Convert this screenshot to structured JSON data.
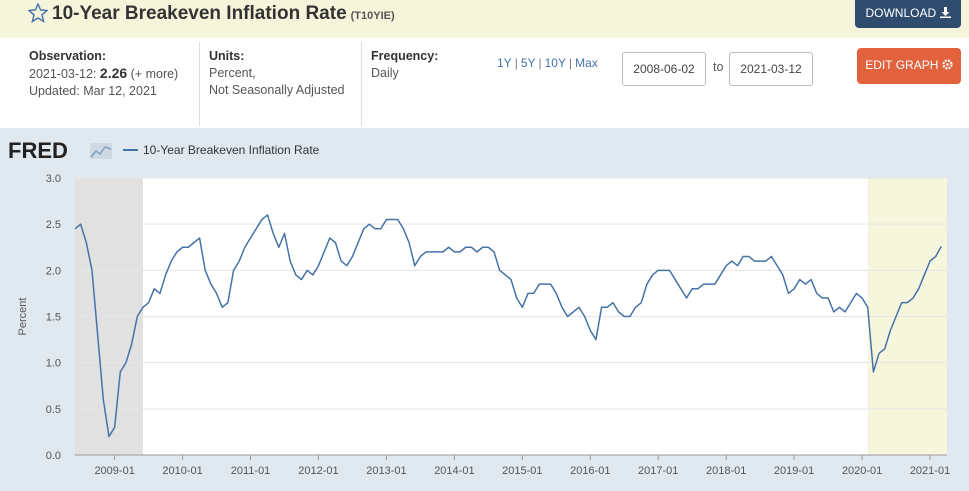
{
  "header": {
    "title": "10-Year Breakeven Inflation Rate",
    "series_id": "(T10YIE)",
    "download": "DOWNLOAD"
  },
  "info": {
    "observation_label": "Observation:",
    "observation_date": "2021-03-12:",
    "observation_value": "2.26",
    "more": "(+ more)",
    "updated": "Updated: Mar 12, 2021",
    "units_label": "Units:",
    "units": [
      "Percent,",
      "Not Seasonally Adjusted"
    ],
    "frequency_label": "Frequency:",
    "frequency": "Daily",
    "ranges": [
      "1Y",
      "5Y",
      "10Y",
      "Max"
    ],
    "start": "2008-06-02",
    "to": "to",
    "end": "2021-03-12",
    "edit": "EDIT GRAPH"
  },
  "chart_data": {
    "type": "line",
    "logo": "FRED",
    "ylabel": "Percent",
    "xlim": [
      "2008-06",
      "2021-04"
    ],
    "xticks": [
      "2009-01",
      "2010-01",
      "2011-01",
      "2012-01",
      "2013-01",
      "2014-01",
      "2015-01",
      "2016-01",
      "2017-01",
      "2018-01",
      "2019-01",
      "2020-01",
      "2021-01"
    ],
    "ylim": [
      0,
      3
    ],
    "yticks": [
      {
        "value": 0,
        "label": "0.0"
      },
      0.5,
      {
        "value": 1,
        "label": "1.0"
      },
      1.5,
      {
        "value": 2,
        "label": "2.0"
      },
      2.5,
      {
        "value": 3,
        "label": "3.0"
      }
    ],
    "grid": true,
    "shaded_periods": [
      {
        "start": "2008-06",
        "end": "2009-06",
        "color": "#e1e1e1"
      },
      {
        "start": "2020-02",
        "end": "2021-04",
        "color": "#f6f6dc"
      }
    ],
    "x": [
      "2008-06",
      "2008-07",
      "2008-08",
      "2008-09",
      "2008-10",
      "2008-11",
      "2008-12",
      "2009-01",
      "2009-02",
      "2009-03",
      "2009-04",
      "2009-05",
      "2009-06",
      "2009-07",
      "2009-08",
      "2009-09",
      "2009-10",
      "2009-11",
      "2009-12",
      "2010-01",
      "2010-02",
      "2010-03",
      "2010-04",
      "2010-05",
      "2010-06",
      "2010-07",
      "2010-08",
      "2010-09",
      "2010-10",
      "2010-11",
      "2010-12",
      "2011-01",
      "2011-02",
      "2011-03",
      "2011-04",
      "2011-05",
      "2011-06",
      "2011-07",
      "2011-08",
      "2011-09",
      "2011-10",
      "2011-11",
      "2011-12",
      "2012-01",
      "2012-02",
      "2012-03",
      "2012-04",
      "2012-05",
      "2012-06",
      "2012-07",
      "2012-08",
      "2012-09",
      "2012-10",
      "2012-11",
      "2012-12",
      "2013-01",
      "2013-02",
      "2013-03",
      "2013-04",
      "2013-05",
      "2013-06",
      "2013-07",
      "2013-08",
      "2013-09",
      "2013-10",
      "2013-11",
      "2013-12",
      "2014-01",
      "2014-02",
      "2014-03",
      "2014-04",
      "2014-05",
      "2014-06",
      "2014-07",
      "2014-08",
      "2014-09",
      "2014-10",
      "2014-11",
      "2014-12",
      "2015-01",
      "2015-02",
      "2015-03",
      "2015-04",
      "2015-05",
      "2015-06",
      "2015-07",
      "2015-08",
      "2015-09",
      "2015-10",
      "2015-11",
      "2015-12",
      "2016-01",
      "2016-02",
      "2016-03",
      "2016-04",
      "2016-05",
      "2016-06",
      "2016-07",
      "2016-08",
      "2016-09",
      "2016-10",
      "2016-11",
      "2016-12",
      "2017-01",
      "2017-02",
      "2017-03",
      "2017-04",
      "2017-05",
      "2017-06",
      "2017-07",
      "2017-08",
      "2017-09",
      "2017-10",
      "2017-11",
      "2017-12",
      "2018-01",
      "2018-02",
      "2018-03",
      "2018-04",
      "2018-05",
      "2018-06",
      "2018-07",
      "2018-08",
      "2018-09",
      "2018-10",
      "2018-11",
      "2018-12",
      "2019-01",
      "2019-02",
      "2019-03",
      "2019-04",
      "2019-05",
      "2019-06",
      "2019-07",
      "2019-08",
      "2019-09",
      "2019-10",
      "2019-11",
      "2019-12",
      "2020-01",
      "2020-02",
      "2020-03",
      "2020-04",
      "2020-05",
      "2020-06",
      "2020-07",
      "2020-08",
      "2020-09",
      "2020-10",
      "2020-11",
      "2020-12",
      "2021-01",
      "2021-02",
      "2021-03"
    ],
    "series": [
      {
        "name": "10-Year Breakeven Inflation Rate",
        "color": "#4572a7",
        "values": [
          2.45,
          2.5,
          2.3,
          2.0,
          1.3,
          0.6,
          0.2,
          0.3,
          0.9,
          1.0,
          1.2,
          1.5,
          1.6,
          1.65,
          1.8,
          1.75,
          1.95,
          2.1,
          2.2,
          2.25,
          2.25,
          2.3,
          2.35,
          2.0,
          1.85,
          1.75,
          1.6,
          1.65,
          2.0,
          2.1,
          2.25,
          2.35,
          2.45,
          2.55,
          2.6,
          2.4,
          2.25,
          2.4,
          2.1,
          1.95,
          1.9,
          2.0,
          1.95,
          2.05,
          2.2,
          2.35,
          2.3,
          2.1,
          2.05,
          2.15,
          2.3,
          2.45,
          2.5,
          2.45,
          2.45,
          2.55,
          2.55,
          2.55,
          2.45,
          2.3,
          2.05,
          2.15,
          2.2,
          2.2,
          2.2,
          2.2,
          2.25,
          2.2,
          2.2,
          2.25,
          2.25,
          2.2,
          2.25,
          2.25,
          2.2,
          2.0,
          1.95,
          1.9,
          1.7,
          1.6,
          1.75,
          1.75,
          1.85,
          1.85,
          1.85,
          1.75,
          1.6,
          1.5,
          1.55,
          1.6,
          1.5,
          1.35,
          1.25,
          1.6,
          1.6,
          1.65,
          1.55,
          1.5,
          1.5,
          1.6,
          1.65,
          1.85,
          1.95,
          2.0,
          2.0,
          2.0,
          1.9,
          1.8,
          1.7,
          1.8,
          1.8,
          1.85,
          1.85,
          1.85,
          1.95,
          2.05,
          2.1,
          2.05,
          2.15,
          2.15,
          2.1,
          2.1,
          2.1,
          2.15,
          2.05,
          1.95,
          1.75,
          1.8,
          1.9,
          1.85,
          1.9,
          1.75,
          1.7,
          1.7,
          1.55,
          1.6,
          1.55,
          1.65,
          1.75,
          1.7,
          1.6,
          0.9,
          1.1,
          1.15,
          1.35,
          1.5,
          1.65,
          1.65,
          1.7,
          1.8,
          1.95,
          2.1,
          2.15,
          2.26
        ]
      }
    ]
  }
}
